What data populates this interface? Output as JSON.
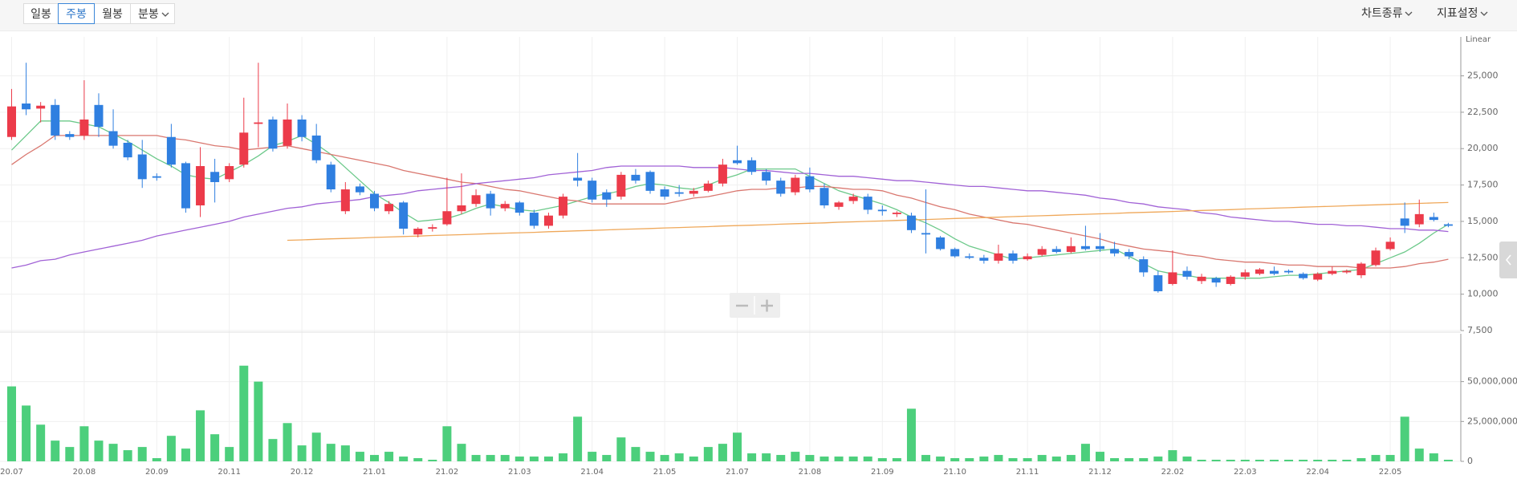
{
  "toolbar": {
    "periods": [
      "일봉",
      "주봉",
      "월봉",
      "분봉"
    ],
    "right": [
      "차트종류",
      "지표설정"
    ]
  },
  "chart_data": {
    "type": "candlestick",
    "scale_label": "Linear",
    "categories": [
      "20.07",
      null,
      null,
      null,
      null,
      "20.08",
      null,
      null,
      null,
      null,
      "20.09",
      null,
      null,
      null,
      null,
      "20.11",
      null,
      null,
      null,
      null,
      "20.12",
      null,
      null,
      null,
      null,
      "21.01",
      null,
      null,
      null,
      null,
      "21.02",
      null,
      null,
      null,
      null,
      "21.03",
      null,
      null,
      null,
      null,
      "21.04",
      null,
      null,
      null,
      null,
      "21.05",
      null,
      null,
      null,
      null,
      "21.07",
      null,
      null,
      null,
      null,
      "21.08",
      null,
      null,
      null,
      null,
      "21.09",
      null,
      null,
      null,
      null,
      "21.10",
      null,
      null,
      null,
      null,
      "21.11",
      null,
      null,
      null,
      null,
      "21.12",
      null,
      null,
      null,
      null,
      "22.02",
      null,
      null,
      null,
      null,
      "22.03",
      null,
      null,
      null,
      null,
      "22.04",
      null,
      null,
      null,
      null,
      "22.05",
      null,
      null,
      null,
      null
    ],
    "open": [
      20800,
      23100,
      22750,
      23000,
      21000,
      20900,
      23000,
      21200,
      20400,
      19600,
      18100,
      20800,
      19000,
      16100,
      18400,
      17900,
      18900,
      21700,
      22000,
      20200,
      22000,
      20900,
      18900,
      15700,
      17400,
      16900,
      15700,
      16300,
      14100,
      14500,
      14800,
      15700,
      16200,
      16900,
      15900,
      16300,
      15600,
      14700,
      15400,
      18000,
      17800,
      17000,
      16700,
      18200,
      18400,
      17200,
      17000,
      16900,
      17100,
      17600,
      19200,
      19200,
      18400,
      17800,
      17000,
      18100,
      17300,
      16000,
      16400,
      16700,
      15800,
      15500,
      15400,
      14200,
      13900,
      13100,
      12600,
      12500,
      12300,
      12800,
      12400,
      12700,
      13100,
      12900,
      13300,
      13300,
      13100,
      12900,
      12400,
      11300,
      10700,
      11600,
      10900,
      11100,
      10700,
      11200,
      11400,
      11600,
      11600,
      11400,
      11000,
      11400,
      11500,
      11300,
      12000,
      13100,
      15200,
      14800,
      15300,
      14800
    ],
    "high": [
      24100,
      25900,
      23200,
      23400,
      21200,
      24700,
      23800,
      22700,
      20600,
      20600,
      18300,
      21700,
      19100,
      20100,
      19300,
      19000,
      23500,
      25900,
      22200,
      23100,
      22300,
      21700,
      19100,
      17700,
      17600,
      17100,
      16400,
      16400,
      14600,
      14800,
      18000,
      18300,
      17200,
      17100,
      16400,
      16400,
      15800,
      15600,
      16900,
      19700,
      18000,
      17200,
      18400,
      18600,
      18500,
      17400,
      17500,
      17300,
      17800,
      19300,
      20200,
      19400,
      18600,
      18000,
      18200,
      18700,
      17600,
      16400,
      16900,
      16900,
      16100,
      15700,
      15600,
      17200,
      14000,
      13200,
      12800,
      12700,
      13400,
      13000,
      12800,
      13300,
      13300,
      13900,
      14700,
      14200,
      13600,
      13100,
      12600,
      11600,
      13000,
      11900,
      11400,
      11200,
      11300,
      11700,
      11800,
      11900,
      11700,
      11500,
      11500,
      11900,
      11700,
      12200,
      13200,
      13900,
      16300,
      16500,
      15600,
      14900
    ],
    "low": [
      20600,
      22300,
      21800,
      20600,
      20600,
      20600,
      20800,
      20000,
      19200,
      17300,
      17800,
      18700,
      15600,
      15300,
      16300,
      17700,
      18700,
      20100,
      19800,
      20000,
      20500,
      19000,
      17000,
      15500,
      16800,
      15700,
      15500,
      14100,
      13900,
      14300,
      14700,
      15500,
      16000,
      15400,
      15700,
      15400,
      14500,
      14500,
      15200,
      17400,
      16300,
      16000,
      16500,
      17600,
      16900,
      16500,
      16700,
      16700,
      17000,
      17400,
      18900,
      18200,
      17500,
      16700,
      16800,
      17000,
      15900,
      15800,
      16200,
      15500,
      15400,
      15300,
      14200,
      12800,
      13000,
      12500,
      12400,
      12100,
      12100,
      12100,
      12300,
      12600,
      12800,
      12800,
      13000,
      12900,
      12600,
      12400,
      11200,
      10100,
      10600,
      11000,
      10700,
      10500,
      10600,
      11000,
      11300,
      11300,
      11400,
      11000,
      10900,
      11300,
      11400,
      11100,
      11900,
      13000,
      14200,
      14600,
      15000,
      14600
    ],
    "close": [
      22900,
      22700,
      22950,
      20900,
      20800,
      22000,
      21500,
      20200,
      19400,
      17900,
      18000,
      18900,
      15900,
      18800,
      17700,
      18800,
      21100,
      21800,
      20000,
      22000,
      20800,
      19200,
      17200,
      17200,
      17000,
      15900,
      16200,
      14500,
      14500,
      14600,
      15700,
      16100,
      16800,
      15900,
      16200,
      15600,
      14700,
      15400,
      16700,
      17800,
      16500,
      16500,
      18200,
      17800,
      17100,
      16700,
      16900,
      17100,
      17600,
      18900,
      19000,
      18400,
      17800,
      16900,
      18000,
      17200,
      16100,
      16300,
      16700,
      15800,
      15700,
      15600,
      14400,
      14100,
      13100,
      12600,
      12500,
      12300,
      12800,
      12300,
      12600,
      13100,
      12900,
      13300,
      13100,
      13100,
      12800,
      12600,
      11500,
      10200,
      11500,
      11200,
      11200,
      10800,
      11200,
      11500,
      11700,
      11400,
      11500,
      11100,
      11400,
      11600,
      11600,
      12100,
      13000,
      13600,
      14700,
      15500,
      15100,
      14700
    ],
    "volume": [
      47000000,
      35000000,
      23000000,
      13000000,
      9000000,
      22000000,
      13000000,
      11000000,
      7000000,
      9000000,
      2000000,
      16000000,
      8000000,
      32000000,
      17000000,
      9000000,
      60000000,
      50000000,
      14000000,
      24000000,
      10000000,
      18000000,
      11000000,
      10000000,
      6000000,
      4000000,
      6000000,
      3000000,
      2000000,
      1000000,
      22000000,
      11000000,
      4000000,
      4000000,
      4000000,
      3000000,
      3000000,
      3000000,
      5000000,
      28000000,
      6000000,
      4000000,
      15000000,
      9000000,
      6000000,
      4000000,
      5000000,
      3000000,
      9000000,
      11000000,
      18000000,
      5000000,
      5000000,
      4000000,
      6000000,
      4000000,
      3000000,
      3000000,
      3000000,
      3000000,
      2000000,
      2000000,
      33000000,
      4000000,
      3000000,
      2000000,
      2000000,
      3000000,
      4000000,
      2000000,
      2000000,
      4000000,
      3000000,
      4000000,
      11000000,
      6000000,
      2000000,
      2000000,
      2000000,
      3000000,
      7000000,
      3000000,
      1000000,
      1000000,
      1000000,
      1000000,
      1000000,
      1000000,
      1000000,
      1000000,
      1000000,
      1000000,
      1000000,
      2000000,
      4000000,
      4000000,
      28000000,
      8000000,
      5000000,
      1000000
    ],
    "up_color": "#ec3b4a",
    "down_color": "#2f7fe0",
    "volume_color": "#4ccf7c",
    "moving_averages": [
      {
        "color": "#6cc98a",
        "values": [
          19900,
          20900,
          21900,
          21900,
          21900,
          21700,
          21500,
          21000,
          20500,
          19900,
          19300,
          18800,
          18200,
          18000,
          17900,
          18400,
          18900,
          19500,
          20200,
          20500,
          20900,
          20300,
          19600,
          18700,
          17800,
          16900,
          16300,
          15600,
          15000,
          15100,
          15200,
          15500,
          15900,
          16200,
          16000,
          15800,
          15700,
          15900,
          16100,
          16400,
          16700,
          16900,
          17100,
          17400,
          17600,
          17500,
          17300,
          17200,
          17500,
          17900,
          18200,
          18600,
          18600,
          18600,
          18600,
          18100,
          17600,
          17100,
          16800,
          16500,
          16200,
          15800,
          15300,
          14900,
          14400,
          13800,
          13300,
          13000,
          12700,
          12400,
          12500,
          12600,
          12700,
          12800,
          12900,
          13000,
          13100,
          12600,
          12100,
          11600,
          11400,
          11300,
          11100,
          11100,
          11100,
          11100,
          11100,
          11200,
          11300,
          11300,
          11400,
          11500,
          11600,
          11700,
          12100,
          12500,
          12900,
          13500,
          14200,
          14800
        ]
      },
      {
        "color": "#d9776f",
        "values": [
          18900,
          19600,
          20200,
          20900,
          20900,
          20900,
          20900,
          20900,
          20900,
          20900,
          20900,
          20700,
          20600,
          20400,
          20200,
          20100,
          19900,
          20000,
          20100,
          20200,
          20000,
          19800,
          19600,
          19400,
          19200,
          19000,
          18800,
          18500,
          18300,
          18100,
          17900,
          17700,
          17600,
          17400,
          17200,
          17100,
          16900,
          16700,
          16500,
          16400,
          16200,
          16200,
          16200,
          16200,
          16200,
          16200,
          16400,
          16600,
          16700,
          16900,
          17100,
          17200,
          17200,
          17300,
          17300,
          17400,
          17400,
          17300,
          17200,
          17200,
          17100,
          16800,
          16600,
          16300,
          16000,
          15800,
          15500,
          15300,
          15100,
          14900,
          14800,
          14600,
          14400,
          14200,
          14000,
          13800,
          13500,
          13300,
          13100,
          13000,
          12900,
          12700,
          12600,
          12400,
          12300,
          12200,
          12200,
          12100,
          12000,
          12000,
          11900,
          11900,
          11900,
          11800,
          11800,
          11800,
          11900,
          12100,
          12200,
          12400
        ]
      },
      {
        "color": "#a162d6",
        "values": [
          11800,
          12000,
          12300,
          12400,
          12700,
          12900,
          13100,
          13300,
          13500,
          13700,
          14000,
          14200,
          14400,
          14600,
          14800,
          15000,
          15300,
          15500,
          15700,
          15900,
          16000,
          16200,
          16300,
          16400,
          16500,
          16700,
          16800,
          16900,
          17100,
          17200,
          17300,
          17400,
          17600,
          17700,
          17800,
          17900,
          18000,
          18200,
          18300,
          18400,
          18500,
          18700,
          18800,
          18800,
          18800,
          18800,
          18800,
          18700,
          18700,
          18700,
          18600,
          18500,
          18500,
          18400,
          18300,
          18300,
          18200,
          18100,
          18100,
          18000,
          17900,
          17800,
          17800,
          17700,
          17600,
          17500,
          17400,
          17400,
          17300,
          17200,
          17100,
          17100,
          17000,
          16900,
          16800,
          16600,
          16500,
          16300,
          16200,
          16000,
          15900,
          15800,
          15600,
          15500,
          15300,
          15200,
          15100,
          15000,
          15000,
          14900,
          14800,
          14800,
          14700,
          14700,
          14600,
          14500,
          14500,
          14400,
          14400,
          14300
        ]
      },
      {
        "color": "#efa85a",
        "values": [
          null,
          null,
          null,
          null,
          null,
          null,
          null,
          null,
          null,
          null,
          null,
          null,
          null,
          null,
          null,
          null,
          null,
          null,
          null,
          13700,
          13730,
          13770,
          13800,
          13830,
          13860,
          13900,
          13930,
          13960,
          13990,
          14030,
          14060,
          14090,
          14120,
          14160,
          14190,
          14220,
          14250,
          14290,
          14320,
          14350,
          14380,
          14420,
          14450,
          14480,
          14510,
          14550,
          14580,
          14610,
          14640,
          14680,
          14710,
          14740,
          14770,
          14810,
          14840,
          14870,
          14900,
          14940,
          14970,
          15000,
          15030,
          15070,
          15100,
          15130,
          15160,
          15200,
          15230,
          15260,
          15290,
          15330,
          15360,
          15390,
          15420,
          15460,
          15490,
          15520,
          15550,
          15590,
          15620,
          15650,
          15680,
          15720,
          15750,
          15780,
          15810,
          15850,
          15880,
          15910,
          15940,
          15980,
          16010,
          16040,
          16070,
          16110,
          16140,
          16170,
          16200,
          16240,
          16270,
          16300
        ]
      }
    ],
    "ylim": [
      7500,
      27400
    ],
    "yticks": [
      {
        "value": 7500,
        "label": "7,500"
      },
      {
        "value": 10000,
        "label": "10,000"
      },
      {
        "value": 12500,
        "label": "12,500"
      },
      {
        "value": 15000,
        "label": "15,000"
      },
      {
        "value": 17500,
        "label": "17,500"
      },
      {
        "value": 20000,
        "label": "20,000"
      },
      {
        "value": 22500,
        "label": "22,500"
      },
      {
        "value": 25000,
        "label": "25,000"
      }
    ],
    "volume_ylim": [
      0,
      80000000
    ],
    "volume_yticks": [
      0,
      {
        "value": 25000000,
        "label": "25,000,000"
      },
      {
        "value": 50000000,
        "label": "50,000,000"
      }
    ],
    "grid": true
  }
}
